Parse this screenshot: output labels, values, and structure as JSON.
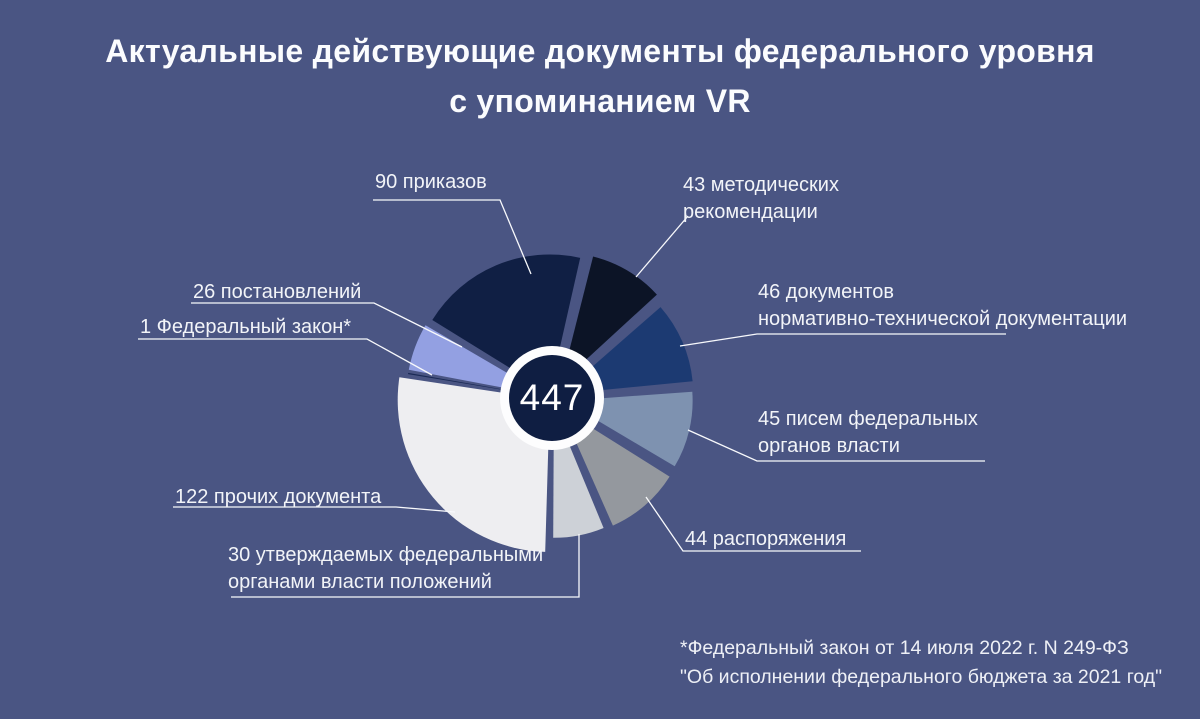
{
  "title": {
    "line1": "Актуальные действующие документы федерального уровня",
    "line2": "с упоминанием VR"
  },
  "center_total": "447",
  "labels": {
    "prikazy": "90 приказов",
    "metod_1": "43 методических",
    "metod_2": "рекомендации",
    "postanovleniya": "26 постановлений",
    "fedzakon": "1 Федеральный закон*",
    "ntd_1": "46 документов",
    "ntd_2": "нормативно-технической документации",
    "pisma_1": "45 писем федеральных",
    "pisma_2": "органов власти",
    "rasporyazheniya": "44 распоряжения",
    "prochie": "122 прочих документа",
    "polozheniya_1": "30 утверждаемых федеральными",
    "polozheniya_2": "органами власти положений"
  },
  "footnote": {
    "line1": "*Федеральный закон от 14 июля 2022 г. N 249-ФЗ",
    "line2": "\"Об исполнении федерального бюджета за 2021 год\""
  },
  "colors": {
    "background": "#4a5583",
    "text": "#f2f4f8",
    "center_circle": "#0f1e42",
    "center_ring": "#fdfdfe",
    "connector_line": "#f8f9fc"
  },
  "chart_data": {
    "type": "pie",
    "title": "Актуальные действующие документы федерального уровня с упоминанием VR",
    "total": 447,
    "center_label": "447",
    "legend_position": "callout-labels",
    "segments": [
      {
        "label": "90 приказов",
        "value": 90,
        "color": "#101f44"
      },
      {
        "label": "43 методических рекомендации",
        "value": 43,
        "color": "#0c1426"
      },
      {
        "label": "46 документов нормативно-технической документации",
        "value": 46,
        "color": "#1c3a72"
      },
      {
        "label": "45 писем федеральных органов власти",
        "value": 45,
        "color": "#7e92b0"
      },
      {
        "label": "44 распоряжения",
        "value": 44,
        "color": "#94989e"
      },
      {
        "label": "30 утверждаемых федеральными органами власти положений",
        "value": 30,
        "color": "#cdd1d7"
      },
      {
        "label": "122 прочих документа",
        "value": 122,
        "color": "#eeeef1"
      },
      {
        "label": "1 Федеральный закон*",
        "value": 1,
        "color": "#1a2a55"
      },
      {
        "label": "26 постановлений",
        "value": 26,
        "color": "#93a0e2"
      }
    ]
  }
}
